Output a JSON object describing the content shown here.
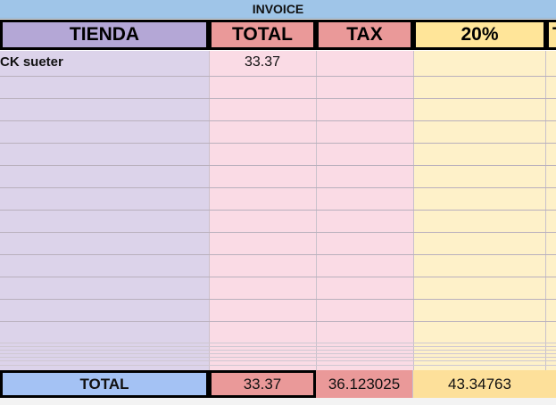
{
  "sheet": {
    "title": "INVOICE",
    "headers": {
      "store": "TIENDA",
      "total": "TOTAL",
      "tax": "TAX",
      "percent": "20%",
      "next_partial": "T"
    },
    "rows": [
      {
        "store": "CK sueter",
        "total": "33.37"
      }
    ],
    "totals": {
      "label": "TOTAL",
      "total": "33.37",
      "tax": "36.123025",
      "percent": "43.34763"
    },
    "colors": {
      "banner": "#9fc5e8",
      "store_header": "#b4a7d6",
      "total_header": "#ea9999",
      "percent_header": "#ffe599",
      "store_column": "#dcd3ea",
      "total_column": "#fadbe5",
      "percent_column": "#fef1c9",
      "total_label": "#a4c2f4"
    }
  }
}
